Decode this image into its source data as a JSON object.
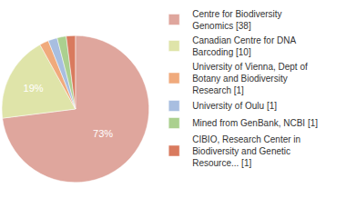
{
  "chart_data": {
    "type": "pie",
    "categories": [
      "Centre for Biodiversity\nGenomics [38]",
      "Canadian Centre for DNA\nBarcoding [10]",
      "University of Vienna, Dept of\nBotany and Biodiversity\nResearch [1]",
      "University of Oulu [1]",
      "Mined from GenBank, NCBI [1]",
      "CIBIO, Research Center in\nBiodiversity and Genetic\nResource... [1]"
    ],
    "values": [
      73,
      19,
      2,
      2,
      2,
      2
    ],
    "value_labels": [
      "73%",
      "19%",
      null,
      null,
      null,
      null
    ],
    "colors": [
      "#dfa69d",
      "#dfe4a9",
      "#f0aa7c",
      "#a8bee0",
      "#abd08f",
      "#d97a5e"
    ],
    "data_labels": true,
    "legend": "upper right"
  }
}
